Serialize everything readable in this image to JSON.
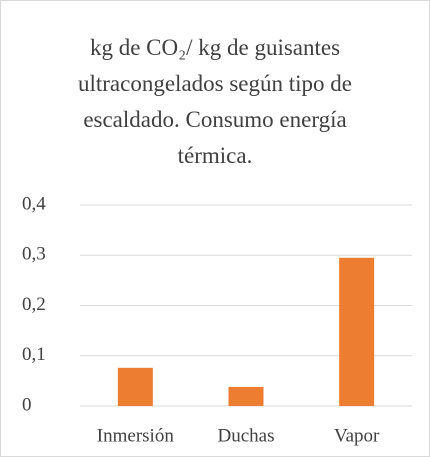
{
  "chart_data": {
    "type": "bar",
    "title": "kg de CO₂/ kg de guisantes ultracongelados según tipo de escaldado. Consumo energía térmica.",
    "categories": [
      "Inmersión",
      "Duchas",
      "Vapor"
    ],
    "values": [
      0.076,
      0.038,
      0.295
    ],
    "color": "#ed7d31",
    "ylim": [
      0,
      0.4
    ],
    "yticks": [
      0,
      {
        "value": 0.1,
        "label": "0,1"
      },
      {
        "value": 0.2,
        "label": "0,2"
      },
      {
        "value": 0.3,
        "label": "0,3"
      },
      {
        "value": 0.4,
        "label": "0,4"
      }
    ],
    "grid": true
  }
}
